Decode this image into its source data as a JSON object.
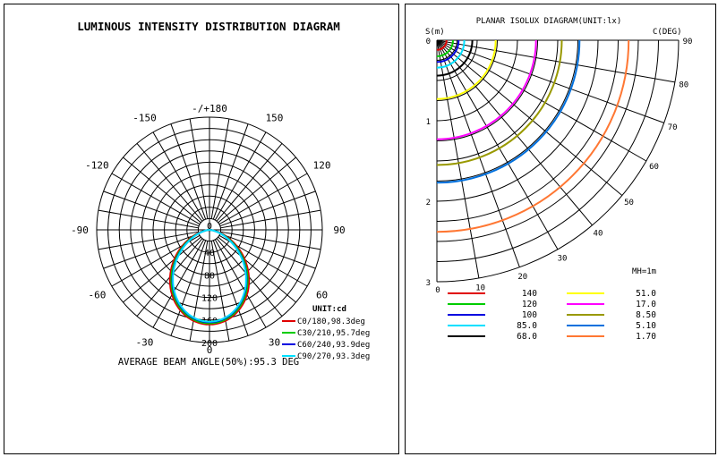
{
  "polar": {
    "title": "LUMINOUS INTENSITY DISTRIBUTION DIAGRAM",
    "angle_labels": [
      {
        "deg": 180,
        "text": "-/+180"
      },
      {
        "deg": -150,
        "text": "-150"
      },
      {
        "deg": 150,
        "text": "150"
      },
      {
        "deg": -120,
        "text": "-120"
      },
      {
        "deg": 120,
        "text": "120"
      },
      {
        "deg": -90,
        "text": "-90"
      },
      {
        "deg": 90,
        "text": "90"
      },
      {
        "deg": -60,
        "text": "-60"
      },
      {
        "deg": 60,
        "text": "60"
      },
      {
        "deg": -30,
        "text": "-30"
      },
      {
        "deg": 30,
        "text": "30"
      },
      {
        "deg": 0,
        "text": "0"
      }
    ],
    "radial_labels": [
      "0",
      "40",
      "80",
      "120",
      "160",
      "200"
    ],
    "unit_label": "UNIT:cd",
    "footer": "AVERAGE BEAM ANGLE(50%):95.3 DEG"
  },
  "isolux": {
    "title": "PLANAR ISOLUX DIAGRAM(UNIT:lx)",
    "y_axis_label": "S(m)",
    "c_label": "C(DEG)",
    "mh_label": "MH=1m",
    "y_ticks": [
      "0",
      "1",
      "2",
      "3"
    ],
    "x_ticks": [
      "0",
      "10",
      "20",
      "30",
      "40",
      "50",
      "60",
      "70",
      "80",
      "90"
    ]
  },
  "chart_data": [
    {
      "type": "polar",
      "title": "LUMINOUS INTENSITY DISTRIBUTION DIAGRAM",
      "unit": "cd",
      "r_range": [
        0,
        200
      ],
      "r_ticks": [
        0,
        40,
        80,
        120,
        160,
        200
      ],
      "angle_ticks": [
        -180,
        -150,
        -120,
        -90,
        -60,
        -30,
        0,
        30,
        60,
        90,
        120,
        150,
        180
      ],
      "grid": true,
      "legend_position": "bottom-right",
      "average_beam_angle_deg": 95.3,
      "series": [
        {
          "name": "C0/180,98.3deg",
          "color": "#e00000",
          "peak_cd": 168,
          "beam_angle_deg": 98.3
        },
        {
          "name": "C30/210,95.7deg",
          "color": "#00cc00",
          "peak_cd": 166,
          "beam_angle_deg": 95.7
        },
        {
          "name": "C60/240,93.9deg",
          "color": "#0000e0",
          "peak_cd": 164,
          "beam_angle_deg": 93.9
        },
        {
          "name": "C90/270,93.3deg",
          "color": "#00e0ff",
          "peak_cd": 163,
          "beam_angle_deg": 93.3
        }
      ]
    },
    {
      "type": "isolux",
      "title": "PLANAR ISOLUX DIAGRAM(UNIT:lx)",
      "mounting_height_m": 1,
      "s_range_m": [
        0,
        3
      ],
      "c_range_deg": [
        0,
        90
      ],
      "grid": true,
      "legend_position": "bottom",
      "levels": [
        {
          "lux": "140",
          "color": "#e00000",
          "radius_m": 0.12
        },
        {
          "lux": "120",
          "color": "#00cc00",
          "radius_m": 0.2
        },
        {
          "lux": "100",
          "color": "#0000e0",
          "radius_m": 0.27
        },
        {
          "lux": "85.0",
          "color": "#00e0ff",
          "radius_m": 0.34
        },
        {
          "lux": "68.0",
          "color": "#000000",
          "radius_m": 0.44
        },
        {
          "lux": "51.0",
          "color": "#ffff00",
          "radius_m": 0.73
        },
        {
          "lux": "17.0",
          "color": "#ff00ff",
          "radius_m": 1.23
        },
        {
          "lux": "8.50",
          "color": "#999900",
          "radius_m": 1.55
        },
        {
          "lux": "5.10",
          "color": "#0070dd",
          "radius_m": 1.77
        },
        {
          "lux": "1.70",
          "color": "#ff7733",
          "radius_m": 2.38
        }
      ]
    }
  ]
}
